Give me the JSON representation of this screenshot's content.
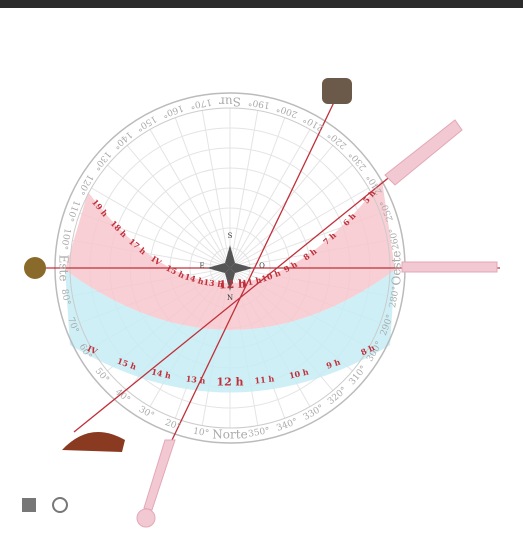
{
  "diagram": {
    "degree_labels": [
      "Norte",
      "10°",
      "20°",
      "30°",
      "40°",
      "50°",
      "60°",
      "70°",
      "80°",
      "Este",
      "100°",
      "110°",
      "120°",
      "130°",
      "140°",
      "150°",
      "160°",
      "170°",
      "Sur",
      "190°",
      "200°",
      "210°",
      "220°",
      "230°",
      "240°",
      "250°",
      "260°",
      "Oeste",
      "280°",
      "290°",
      "300°",
      "310°",
      "320°",
      "330°",
      "340°",
      "350°"
    ],
    "compass": [
      "S",
      "E",
      "O",
      "N"
    ],
    "upper_hours": [
      "19 h",
      "18 h",
      "17 h",
      "IV",
      "15 h",
      "14 h",
      "13 h",
      "12 h",
      "11 h",
      "10 h",
      "9 h",
      "8 h",
      "7 h",
      "6 h",
      "5 h"
    ],
    "lower_hours": [
      "IV",
      "15 h",
      "14 h",
      "13 h",
      "12 h",
      "11 h",
      "10 h",
      "9 h",
      "8 h"
    ]
  }
}
